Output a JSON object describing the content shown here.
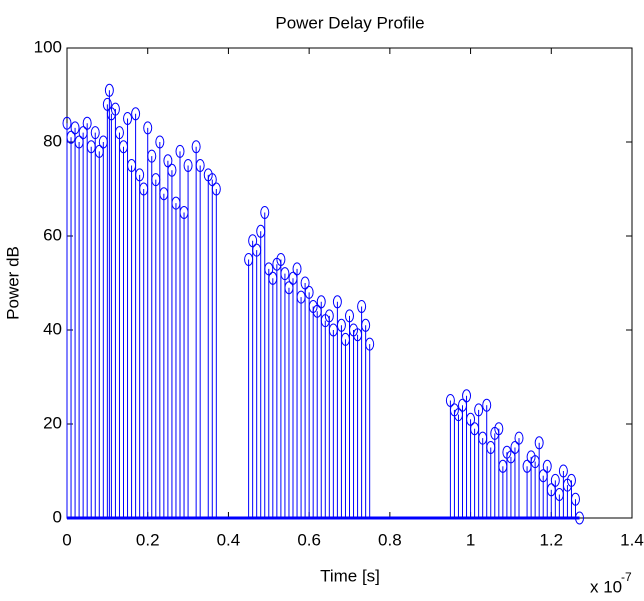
{
  "chart_data": {
    "type": "stem",
    "title": "Power Delay Profile",
    "x_label": "Time [s]",
    "y_label": "Power dB",
    "x_multiplier": "x 10",
    "x_exponent": "-7",
    "xlim": [
      0,
      1.4
    ],
    "xticks": [
      0,
      0.2,
      0.4,
      0.6,
      0.8,
      1,
      1.2,
      1.4
    ],
    "ylim": [
      0,
      100
    ],
    "yticks": [
      0,
      20,
      40,
      60,
      80,
      100
    ],
    "color": "#0000ff",
    "x": [
      0,
      0.01,
      0.02,
      0.03,
      0.04,
      0.05,
      0.06,
      0.07,
      0.08,
      0.09,
      0.1,
      0.105,
      0.11,
      0.12,
      0.13,
      0.14,
      0.15,
      0.16,
      0.17,
      0.18,
      0.19,
      0.2,
      0.21,
      0.22,
      0.23,
      0.24,
      0.25,
      0.26,
      0.27,
      0.28,
      0.29,
      0.3,
      0.32,
      0.33,
      0.35,
      0.36,
      0.37,
      0.45,
      0.46,
      0.47,
      0.48,
      0.49,
      0.5,
      0.51,
      0.52,
      0.53,
      0.54,
      0.55,
      0.56,
      0.57,
      0.58,
      0.59,
      0.6,
      0.61,
      0.62,
      0.63,
      0.64,
      0.65,
      0.66,
      0.67,
      0.68,
      0.69,
      0.7,
      0.71,
      0.72,
      0.73,
      0.74,
      0.75,
      0.95,
      0.96,
      0.97,
      0.98,
      0.99,
      1,
      1.01,
      1.02,
      1.03,
      1.04,
      1.05,
      1.06,
      1.07,
      1.08,
      1.09,
      1.1,
      1.11,
      1.12,
      1.14,
      1.15,
      1.16,
      1.17,
      1.18,
      1.19,
      1.2,
      1.21,
      1.22,
      1.23,
      1.24,
      1.25,
      1.26,
      1.27
    ],
    "values": [
      84,
      81,
      83,
      80,
      82,
      84,
      79,
      82,
      78,
      80,
      88,
      91,
      86,
      87,
      82,
      79,
      85,
      75,
      86,
      73,
      70,
      83,
      77,
      72,
      80,
      69,
      76,
      74,
      67,
      78,
      65,
      75,
      79,
      75,
      73,
      72,
      70,
      55,
      59,
      57,
      61,
      65,
      53,
      51,
      54,
      55,
      52,
      49,
      51,
      53,
      47,
      50,
      48,
      45,
      44,
      46,
      42,
      43,
      40,
      46,
      41,
      38,
      43,
      40,
      39,
      45,
      41,
      37,
      25,
      23,
      22,
      24,
      26,
      21,
      19,
      23,
      17,
      24,
      15,
      18,
      19,
      11,
      14,
      13,
      15,
      17,
      11,
      13,
      12,
      16,
      9,
      11,
      6,
      8,
      5,
      10,
      7,
      8,
      4,
      0
    ]
  }
}
